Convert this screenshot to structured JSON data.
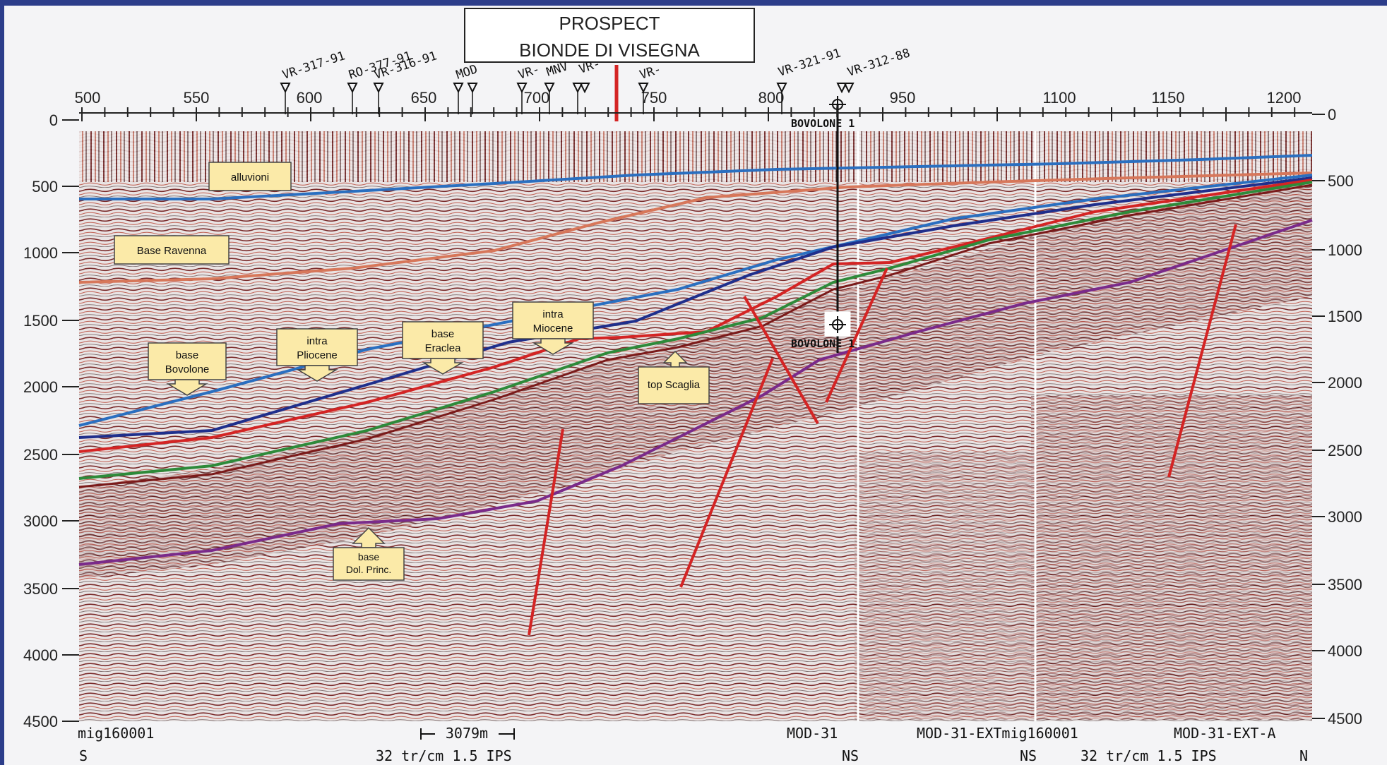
{
  "prospect": {
    "line1": "PROSPECT",
    "line2": "BIONDE DI VISEGNA"
  },
  "colors": {
    "frame": "#2c3d8a",
    "paper": "#f4f4f6",
    "label_fill": "#fbeaa8",
    "alluvioni": "#2a6fc0",
    "base_ravenna": "#d7775a",
    "base_bovolone": "#2a6fc0",
    "intra_pliocene": "#1f2f8c",
    "base_eraclea": "#d42424",
    "intra_miocene": "#2e8a3a",
    "top_scaglia": "#7a1a1a",
    "base_dol_princ": "#7a2a8a",
    "fault": "#d42424",
    "well": "#111111"
  },
  "top_axis_ticks": [
    "500",
    "550",
    "600",
    "650",
    "700",
    "750",
    "800",
    "950",
    "1100",
    "1150",
    "1200"
  ],
  "depth_ticks": [
    "0",
    "500",
    "1000",
    "1500",
    "2000",
    "2500",
    "3000",
    "3500",
    "4000",
    "4500"
  ],
  "right_depth_ticks": [
    "0",
    "500",
    "1000",
    "1500",
    "2000",
    "2500",
    "3000",
    "3500",
    "4000",
    "4500"
  ],
  "well_markers": [
    {
      "name": "VR-317-91"
    },
    {
      "name": "RO-377-91"
    },
    {
      "name": "VR-316-91"
    },
    {
      "name": "MOD"
    },
    {
      "name": "VR-"
    },
    {
      "name": "MNV"
    },
    {
      "name": "VR-"
    },
    {
      "name": "VR-"
    },
    {
      "name": "VR-321-91"
    },
    {
      "name": "VR-312-88"
    }
  ],
  "well": {
    "top_label": "BOVOLONE 1",
    "bottom_label": "BOVOLONE 1"
  },
  "horizon_labels": {
    "alluvioni": "alluvioni",
    "base_ravenna": "Base Ravenna",
    "base_bovolone": [
      "base",
      "Bovolone"
    ],
    "intra_pliocene": [
      "intra",
      "Pliocene"
    ],
    "base_eraclea": [
      "base",
      "Eraclea"
    ],
    "intra_miocene": [
      "intra",
      "Miocene"
    ],
    "top_scaglia": "top Scaglia",
    "base_dol_princ": [
      "base",
      "Dol. Princ."
    ]
  },
  "footer": {
    "left_id": "mig160001",
    "scale_bar": "3079m",
    "mod31": "MOD-31",
    "mod31ext": "MOD-31-EXTmig160001",
    "mod31exta": "MOD-31-EXT-A",
    "s": "S",
    "scale_left": "32 tr/cm 1.5 IPS",
    "ns1": "NS",
    "ns2": "NS",
    "scale_right": "32 tr/cm 1.5 IPS",
    "n": "N"
  }
}
